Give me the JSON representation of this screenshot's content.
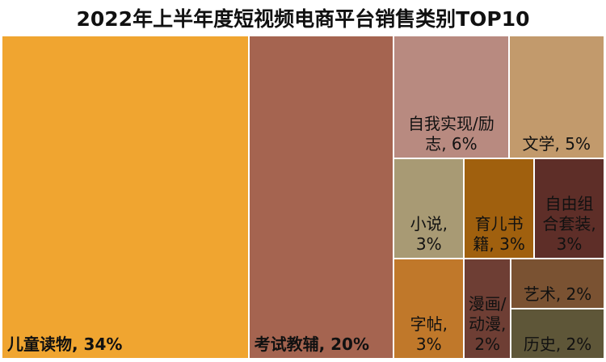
{
  "chart_data": {
    "type": "treemap",
    "title": "2022年上半年度短视频电商平台销售类别TOP10",
    "categories": [
      "儿童读物",
      "考试教辅",
      "自我实现/励志",
      "文学",
      "小说",
      "育儿书籍",
      "自由组合套装",
      "字帖",
      "漫画/动漫",
      "艺术",
      "历史"
    ],
    "values": [
      34,
      20,
      6,
      5,
      3,
      3,
      3,
      3,
      2,
      2,
      2
    ],
    "value_labels": [
      "儿童读物, 34%",
      "考试教辅, 20%",
      "自我实现/励志, 6%",
      "文学, 5%",
      "小说, 3%",
      "育儿书籍, 3%",
      "自由组合套装, 3%",
      "字帖, 3%",
      "漫画/动漫, 2%",
      "艺术, 2%",
      "历史, 2%"
    ],
    "colors": [
      "#f0a530",
      "#a56450",
      "#b88a80",
      "#c29a6c",
      "#a89a74",
      "#a0600e",
      "#5e2e28",
      "#c0782a",
      "#6e3e34",
      "#7a5232",
      "#5e5638"
    ]
  }
}
